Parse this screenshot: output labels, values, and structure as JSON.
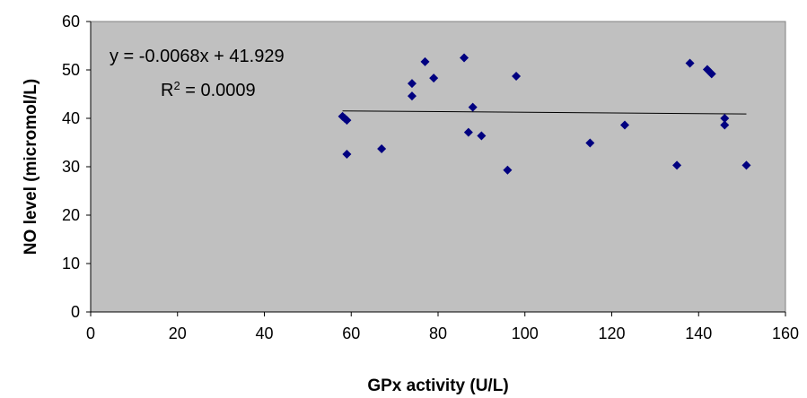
{
  "chart_data": {
    "type": "scatter",
    "title": "",
    "xlabel": "GPx activity (U/L)",
    "ylabel": "NO level (micromol/L)",
    "xlim": [
      0,
      160
    ],
    "ylim": [
      0,
      60
    ],
    "x_ticks": [
      "0",
      "20",
      "40",
      "60",
      "80",
      "100",
      "120",
      "140",
      "160"
    ],
    "y_ticks": [
      "0",
      "10",
      "20",
      "30",
      "40",
      "50",
      "60"
    ],
    "grid": false,
    "plot_background": "#c0c0c0",
    "marker_color": "#000080",
    "trendline_color": "#000000",
    "series": [
      {
        "points": [
          {
            "x": 58,
            "y": 40.4
          },
          {
            "x": 58.5,
            "y": 40.0
          },
          {
            "x": 59,
            "y": 39.6
          },
          {
            "x": 59,
            "y": 32.6
          },
          {
            "x": 67,
            "y": 33.7
          },
          {
            "x": 74,
            "y": 47.2
          },
          {
            "x": 74,
            "y": 44.6
          },
          {
            "x": 77,
            "y": 51.7
          },
          {
            "x": 79,
            "y": 48.3
          },
          {
            "x": 86,
            "y": 52.5
          },
          {
            "x": 87,
            "y": 37.1
          },
          {
            "x": 88,
            "y": 42.3
          },
          {
            "x": 90,
            "y": 36.4
          },
          {
            "x": 96,
            "y": 29.3
          },
          {
            "x": 98,
            "y": 48.7
          },
          {
            "x": 115,
            "y": 34.9
          },
          {
            "x": 123,
            "y": 38.6
          },
          {
            "x": 135,
            "y": 30.3
          },
          {
            "x": 138,
            "y": 51.4
          },
          {
            "x": 142,
            "y": 50.1
          },
          {
            "x": 143,
            "y": 49.2
          },
          {
            "x": 146,
            "y": 40.0
          },
          {
            "x": 146,
            "y": 38.6
          },
          {
            "x": 151,
            "y": 30.3
          }
        ]
      }
    ],
    "trendline": {
      "equation": "y = -0.0068x + 41.929",
      "r2_prefix": "R",
      "r2_sup": "2",
      "r2_value": " = 0.0009",
      "slope": -0.0068,
      "intercept": 41.929,
      "x_range": [
        58,
        151
      ]
    }
  }
}
